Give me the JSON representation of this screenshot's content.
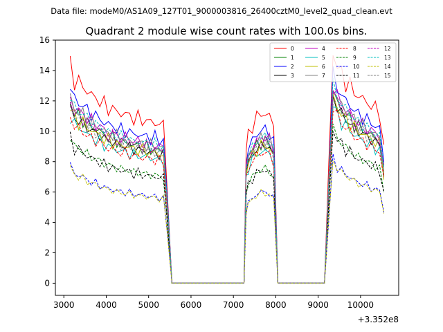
{
  "chart_data": {
    "type": "line",
    "suptitle": "Data file: modeM0/AS1A09_127T01_9000003816_26400cztM0_level2_quad_clean.evt",
    "title": "Quadrant 2 module wise count rates with 100.0s bins.",
    "xlabel": "",
    "ylabel": "",
    "x_offset_label": "+3.352e8",
    "xlim": [
      2800,
      10900
    ],
    "ylim": [
      -0.8,
      16
    ],
    "x_ticks": [
      3000,
      4000,
      5000,
      6000,
      7000,
      8000,
      9000,
      10000
    ],
    "x_tick_labels": [
      "3000",
      "4000",
      "5000",
      "6000",
      "7000",
      "8000",
      "9000",
      "10000"
    ],
    "y_ticks": [
      0,
      2,
      4,
      6,
      8,
      10,
      12,
      14,
      16
    ],
    "y_tick_labels": [
      "0",
      "2",
      "4",
      "6",
      "8",
      "10",
      "12",
      "14",
      "16"
    ],
    "legend_location": "upper right",
    "segments": [
      {
        "x": [
          3150,
          3250,
          3350,
          3450,
          3550,
          3650,
          3750,
          3850,
          3950,
          4050,
          4150,
          4250,
          4350,
          4450,
          4550,
          4650,
          4750,
          4850,
          4950,
          5050,
          5150,
          5250,
          5350,
          5450,
          5550
        ],
        "shape": [
          1.0,
          0.94,
          0.92,
          0.91,
          0.88,
          0.87,
          0.85,
          0.84,
          0.82,
          0.81,
          0.8,
          0.79,
          0.78,
          0.78,
          0.77,
          0.76,
          0.76,
          0.75,
          0.75,
          0.74,
          0.74,
          0.73,
          0.73,
          0.4,
          0.0
        ]
      },
      {
        "x": [
          5650,
          5750,
          5850,
          5950,
          6050,
          6150,
          6250,
          6350,
          6450,
          6550,
          6650,
          6750,
          6850,
          6950,
          7050,
          7150,
          7250
        ],
        "shape": [
          0,
          0,
          0,
          0,
          0,
          0,
          0,
          0,
          0,
          0,
          0,
          0,
          0,
          0,
          0,
          0,
          0
        ]
      },
      {
        "x": [
          7250,
          7300,
          7350,
          7450,
          7550,
          7650,
          7750,
          7850,
          7950,
          8050
        ],
        "shape": [
          0.0,
          0.62,
          0.68,
          0.73,
          0.76,
          0.78,
          0.78,
          0.77,
          0.72,
          0.0
        ]
      },
      {
        "x": [
          8050,
          8150,
          8250,
          8350,
          8450,
          8550,
          8650,
          8750,
          8850,
          8950,
          9050,
          9150
        ],
        "shape": [
          0,
          0,
          0,
          0,
          0,
          0,
          0,
          0,
          0,
          0,
          0,
          0
        ]
      },
      {
        "x": [
          9150,
          9250,
          9350,
          9450,
          9550,
          9650,
          9750,
          9850,
          9950,
          10050,
          10150,
          10250,
          10350,
          10450,
          10550
        ],
        "shape": [
          0.0,
          0.55,
          1.06,
          1.0,
          0.96,
          0.93,
          0.91,
          0.88,
          0.86,
          0.85,
          0.83,
          0.82,
          0.8,
          0.79,
          0.62
        ]
      }
    ],
    "series": [
      {
        "name": "0",
        "color": "#ff0000",
        "dash": "solid",
        "level": 14.3
      },
      {
        "name": "1",
        "color": "#008000",
        "dash": "solid",
        "level": 11.9
      },
      {
        "name": "2",
        "color": "#0000ff",
        "dash": "solid",
        "level": 12.9
      },
      {
        "name": "3",
        "color": "#000000",
        "dash": "solid",
        "level": 11.6
      },
      {
        "name": "4",
        "color": "#bf00bf",
        "dash": "solid",
        "level": 12.3
      },
      {
        "name": "5",
        "color": "#00bfbf",
        "dash": "solid",
        "level": 11.1
      },
      {
        "name": "6",
        "color": "#bfbf00",
        "dash": "solid",
        "level": 11.6
      },
      {
        "name": "7",
        "color": "#808080",
        "dash": "solid",
        "level": 12.2
      },
      {
        "name": "8",
        "color": "#ff0000",
        "dash": "dashed",
        "level": 11.0
      },
      {
        "name": "9",
        "color": "#008000",
        "dash": "dashed",
        "level": 9.6
      },
      {
        "name": "10",
        "color": "#0000ff",
        "dash": "dashed",
        "level": 7.7
      },
      {
        "name": "11",
        "color": "#000000",
        "dash": "dashed",
        "level": 9.5
      },
      {
        "name": "12",
        "color": "#bf00bf",
        "dash": "dashed",
        "level": 12.0
      },
      {
        "name": "13",
        "color": "#00bfbf",
        "dash": "dashed",
        "level": 12.3
      },
      {
        "name": "14",
        "color": "#bfbf00",
        "dash": "dashed",
        "level": 7.6
      },
      {
        "name": "15",
        "color": "#808080",
        "dash": "dashed",
        "level": 11.7
      }
    ]
  }
}
